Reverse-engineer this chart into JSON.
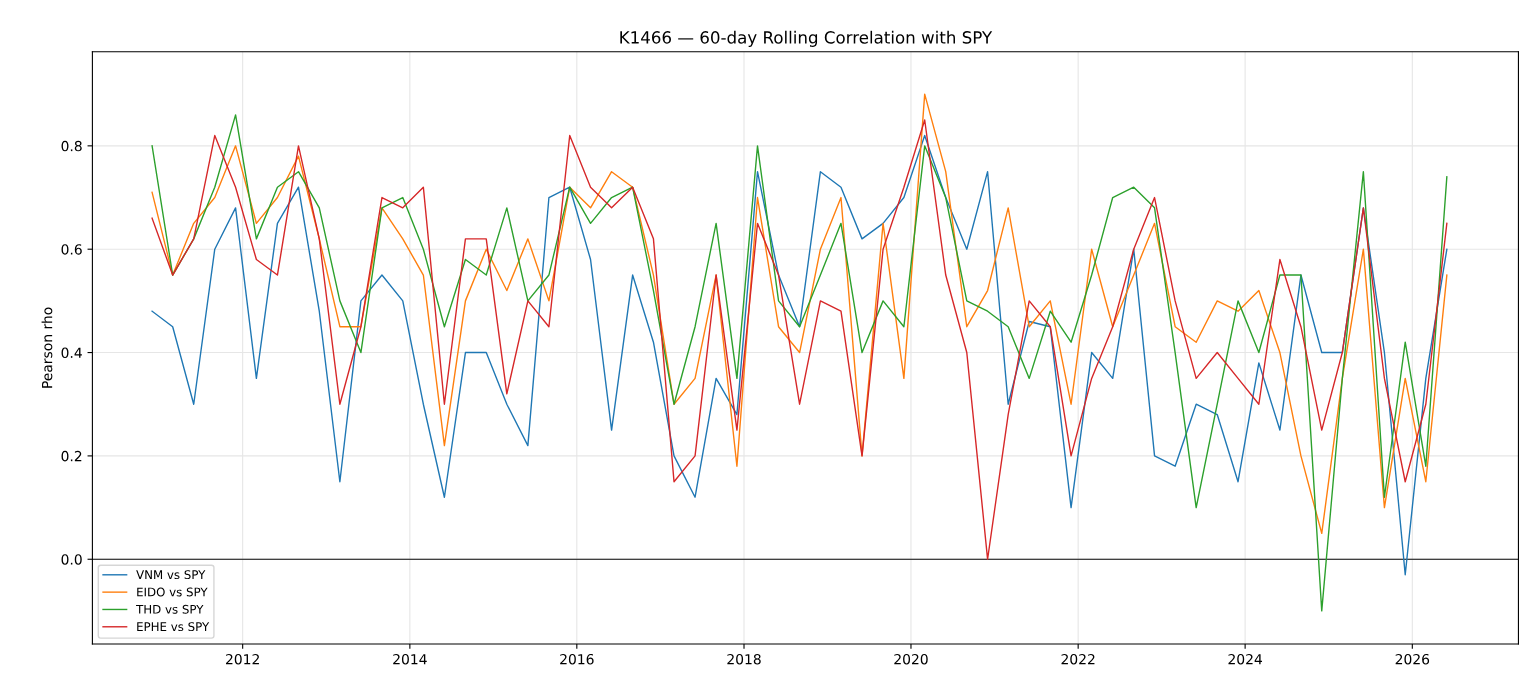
{
  "chart_data": {
    "type": "line",
    "title": "K1466 — 60-day Rolling Correlation with SPY",
    "ylabel": "Pearson rho",
    "x": [
      "2010-12",
      "2011-03",
      "2011-06",
      "2011-09",
      "2011-12",
      "2012-03",
      "2012-06",
      "2012-09",
      "2012-12",
      "2013-03",
      "2013-06",
      "2013-09",
      "2013-12",
      "2014-03",
      "2014-06",
      "2014-09",
      "2014-12",
      "2015-03",
      "2015-06",
      "2015-09",
      "2015-12",
      "2016-03",
      "2016-06",
      "2016-09",
      "2016-12",
      "2017-03",
      "2017-06",
      "2017-09",
      "2017-12",
      "2018-03",
      "2018-06",
      "2018-09",
      "2018-12",
      "2019-03",
      "2019-06",
      "2019-09",
      "2019-12",
      "2020-03",
      "2020-06",
      "2020-09",
      "2020-12",
      "2021-03",
      "2021-06",
      "2021-09",
      "2021-12",
      "2022-03",
      "2022-06",
      "2022-09",
      "2022-12",
      "2023-03",
      "2023-06",
      "2023-09",
      "2023-12",
      "2024-03",
      "2024-06",
      "2024-09",
      "2024-12",
      "2025-03",
      "2025-06",
      "2025-09",
      "2025-12",
      "2026-03",
      "2026-06"
    ],
    "series": [
      {
        "name": "VNM vs SPY",
        "color": "#1f77b4",
        "values": [
          0.48,
          0.45,
          0.3,
          0.6,
          0.68,
          0.35,
          0.65,
          0.72,
          0.48,
          0.15,
          0.5,
          0.55,
          0.5,
          0.3,
          0.12,
          0.4,
          0.4,
          0.3,
          0.22,
          0.7,
          0.72,
          0.58,
          0.25,
          0.55,
          0.42,
          0.2,
          0.12,
          0.35,
          0.28,
          0.75,
          0.55,
          0.45,
          0.75,
          0.72,
          0.62,
          0.65,
          0.7,
          0.82,
          0.7,
          0.6,
          0.75,
          0.3,
          0.46,
          0.45,
          0.1,
          0.4,
          0.35,
          0.6,
          0.2,
          0.18,
          0.3,
          0.28,
          0.15,
          0.38,
          0.25,
          0.55,
          0.4,
          0.4,
          0.68,
          0.4,
          -0.03,
          0.35,
          0.6
        ]
      },
      {
        "name": "EIDO vs SPY",
        "color": "#ff7f0e",
        "values": [
          0.71,
          0.55,
          0.65,
          0.7,
          0.8,
          0.65,
          0.7,
          0.78,
          0.62,
          0.45,
          0.45,
          0.68,
          0.62,
          0.55,
          0.22,
          0.5,
          0.6,
          0.52,
          0.62,
          0.5,
          0.72,
          0.68,
          0.75,
          0.72,
          0.55,
          0.3,
          0.35,
          0.55,
          0.18,
          0.7,
          0.45,
          0.4,
          0.6,
          0.7,
          0.2,
          0.65,
          0.35,
          0.9,
          0.75,
          0.45,
          0.52,
          0.68,
          0.45,
          0.5,
          0.3,
          0.6,
          0.45,
          0.55,
          0.65,
          0.45,
          0.42,
          0.5,
          0.48,
          0.52,
          0.4,
          0.2,
          0.05,
          0.35,
          0.6,
          0.1,
          0.35,
          0.15,
          0.55
        ]
      },
      {
        "name": "THD vs SPY",
        "color": "#2ca02c",
        "values": [
          0.8,
          0.55,
          0.62,
          0.72,
          0.86,
          0.62,
          0.72,
          0.75,
          0.68,
          0.5,
          0.4,
          0.68,
          0.7,
          0.6,
          0.45,
          0.58,
          0.55,
          0.68,
          0.5,
          0.55,
          0.72,
          0.65,
          0.7,
          0.72,
          0.52,
          0.3,
          0.45,
          0.65,
          0.35,
          0.8,
          0.5,
          0.45,
          0.55,
          0.65,
          0.4,
          0.5,
          0.45,
          0.8,
          0.7,
          0.5,
          0.48,
          0.45,
          0.35,
          0.48,
          0.42,
          0.55,
          0.7,
          0.72,
          0.68,
          0.4,
          0.1,
          0.3,
          0.5,
          0.4,
          0.55,
          0.55,
          -0.1,
          0.35,
          0.75,
          0.12,
          0.42,
          0.18,
          0.74
        ]
      },
      {
        "name": "EPHE vs SPY",
        "color": "#d62728",
        "values": [
          0.66,
          0.55,
          0.62,
          0.82,
          0.72,
          0.58,
          0.55,
          0.8,
          0.62,
          0.3,
          0.45,
          0.7,
          0.68,
          0.72,
          0.3,
          0.62,
          0.62,
          0.32,
          0.5,
          0.45,
          0.82,
          0.72,
          0.68,
          0.72,
          0.62,
          0.15,
          0.2,
          0.55,
          0.25,
          0.65,
          0.55,
          0.3,
          0.5,
          0.48,
          0.2,
          0.6,
          0.72,
          0.85,
          0.55,
          0.4,
          0.0,
          0.28,
          0.5,
          0.45,
          0.2,
          0.35,
          0.45,
          0.6,
          0.7,
          0.5,
          0.35,
          0.4,
          0.35,
          0.3,
          0.58,
          0.45,
          0.25,
          0.4,
          0.68,
          0.35,
          0.15,
          0.3,
          0.65
        ]
      }
    ],
    "xlim": [
      "2010-03-15",
      "2027-04-10"
    ],
    "xticks": [
      {
        "value": "2012-01-01",
        "label": "2012"
      },
      {
        "value": "2014-01-01",
        "label": "2014"
      },
      {
        "value": "2016-01-01",
        "label": "2016"
      },
      {
        "value": "2018-01-01",
        "label": "2018"
      },
      {
        "value": "2020-01-01",
        "label": "2020"
      },
      {
        "value": "2022-01-01",
        "label": "2022"
      },
      {
        "value": "2024-01-01",
        "label": "2024"
      },
      {
        "value": "2026-01-01",
        "label": "2026"
      }
    ],
    "ylim": [
      -0.164,
      0.982
    ],
    "yticks": [
      {
        "value": 0,
        "label": "0.0"
      },
      {
        "value": 0.2,
        "label": "0.2"
      },
      {
        "value": 0.4,
        "label": "0.4"
      },
      {
        "value": 0.6,
        "label": "0.6"
      },
      {
        "value": 0.8,
        "label": "0.8"
      }
    ],
    "ref_lines": [
      {
        "axis": "y",
        "value": 0,
        "color": "#000000",
        "line_style": "solid"
      }
    ],
    "grid": true,
    "legend": "bottom left",
    "line_style": "solid",
    "marker": "none"
  }
}
